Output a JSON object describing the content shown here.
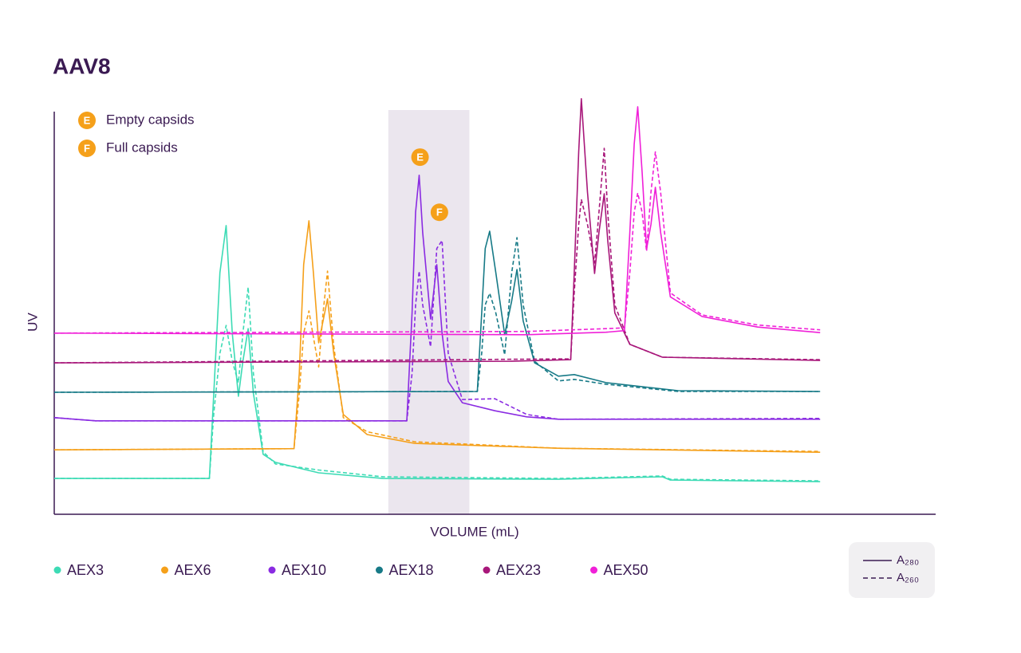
{
  "chart_data": {
    "type": "line",
    "title": "AAV8",
    "x_label": "VOLUME (mL)",
    "y_label": "UV",
    "xlim": [
      0,
      100
    ],
    "ylim": [
      0,
      110
    ],
    "highlight_xlim": [
      37.9,
      47.1
    ],
    "annotations": [
      {
        "letter": "E",
        "text": "Empty capsids",
        "x": 41.5,
        "y": 88.7
      },
      {
        "letter": "F",
        "text": "Full capsids",
        "x": 43.7,
        "y": 75.0
      }
    ],
    "annotation_color": "#f5a01a",
    "line_styles": [
      {
        "label": "A₂₈₀",
        "dashed": false
      },
      {
        "label": "A₂₆₀",
        "dashed": true
      }
    ],
    "series": [
      {
        "name": "AEX3",
        "color": "#3ddbb5",
        "x": [
          0,
          17.6,
          18.1,
          18.8,
          19.5,
          20.2,
          20.9,
          21.4,
          22.0,
          22.6,
          23.7,
          25.1,
          30.0,
          37.3,
          57.2,
          69.0,
          69.9,
          86.9
        ],
        "values": [
          8.9,
          8.9,
          30,
          60,
          71.7,
          45,
          29.3,
          38,
          46.1,
          30,
          14.9,
          12.9,
          10.3,
          8.9,
          8.7,
          9.3,
          8.5,
          8.1
        ],
        "values_a260": [
          8.9,
          8.9,
          25,
          40,
          46.9,
          38,
          32.7,
          45,
          56.4,
          35,
          15.5,
          12.5,
          11,
          9.3,
          8.9,
          9.5,
          8.7,
          8.3
        ]
      },
      {
        "name": "AEX6",
        "color": "#f5a01a",
        "x": [
          0,
          27.2,
          27.8,
          28.3,
          28.9,
          29.4,
          30.0,
          30.5,
          31.0,
          31.7,
          32.8,
          35.5,
          40.9,
          57.2,
          86.9
        ],
        "values": [
          16.0,
          16.3,
          35,
          62,
          72.9,
          60,
          42.6,
          48,
          53.5,
          40,
          24.8,
          19.8,
          17.6,
          16.4,
          15.4
        ],
        "values_a260": [
          16.0,
          16.3,
          30,
          45,
          50.5,
          44,
          36.6,
          50,
          60.4,
          42,
          24,
          20.5,
          18,
          16.4,
          15.6
        ]
      },
      {
        "name": "AEX10",
        "color": "#8a2be2",
        "x": [
          0,
          4.7,
          40.0,
          40.6,
          41.0,
          41.4,
          41.8,
          42.7,
          43.4,
          44.0,
          44.7,
          46.3,
          50.0,
          53.6,
          57.2,
          86.9
        ],
        "values": [
          24.0,
          23.2,
          23.2,
          50,
          75,
          84.2,
          70,
          48.5,
          62.0,
          45,
          33,
          27.7,
          25.7,
          24.2,
          23.6,
          23.6
        ],
        "values_a260": [
          24.0,
          23.2,
          23.2,
          35,
          52,
          60.4,
          52,
          41.6,
          66,
          68,
          40,
          28.5,
          28.7,
          24.8,
          23.6,
          23.8
        ]
      },
      {
        "name": "AEX18",
        "color": "#177a87",
        "x": [
          0,
          48.0,
          48.5,
          48.9,
          49.4,
          50.1,
          51.1,
          51.9,
          52.5,
          53.2,
          54.5,
          57.2,
          59.0,
          62.6,
          70.8,
          86.9
        ],
        "values": [
          30.3,
          30.5,
          50,
          66,
          70.3,
          60,
          44.6,
          53,
          60.8,
          48,
          37.6,
          34.3,
          34.7,
          32.7,
          30.7,
          30.5
        ],
        "values_a260": [
          30.3,
          30.5,
          40,
          52,
          54.9,
          50,
          39.6,
          60,
          68.7,
          52,
          38,
          33.1,
          33.5,
          32.3,
          30.5,
          30.5
        ]
      },
      {
        "name": "AEX23",
        "color": "#a8177a",
        "x": [
          0,
          51.8,
          58.6,
          59.0,
          59.5,
          59.8,
          60.5,
          61.3,
          61.8,
          62.4,
          62.8,
          63.6,
          65.3,
          69.0,
          86.9
        ],
        "values": [
          37.6,
          38.0,
          38.4,
          60,
          90,
          103.2,
          80,
          59.8,
          70,
          79.6,
          68,
          50,
          42.2,
          39,
          38.2
        ],
        "values_a260": [
          37.6,
          38.5,
          38.6,
          55,
          72,
          78.2,
          72,
          62.4,
          75,
          90.9,
          75,
          52,
          42.2,
          39,
          38.4
        ]
      },
      {
        "name": "AEX50",
        "color": "#f020d8",
        "x": [
          0,
          53.6,
          62.6,
          64.7,
          65.3,
          65.8,
          66.2,
          66.7,
          67.2,
          67.7,
          68.2,
          68.8,
          69.9,
          73.5,
          79.8,
          86.9
        ],
        "values": [
          45.0,
          44.6,
          45.2,
          45.6,
          70,
          92,
          101.2,
          85,
          65.9,
          72,
          81.2,
          70,
          54,
          49.1,
          46.5,
          45.1
        ],
        "values_a260": [
          45.0,
          45.4,
          46.1,
          46.3,
          60,
          75,
          79.8,
          75,
          65.3,
          80,
          90,
          80,
          55,
          49.5,
          47,
          45.8
        ]
      }
    ]
  }
}
